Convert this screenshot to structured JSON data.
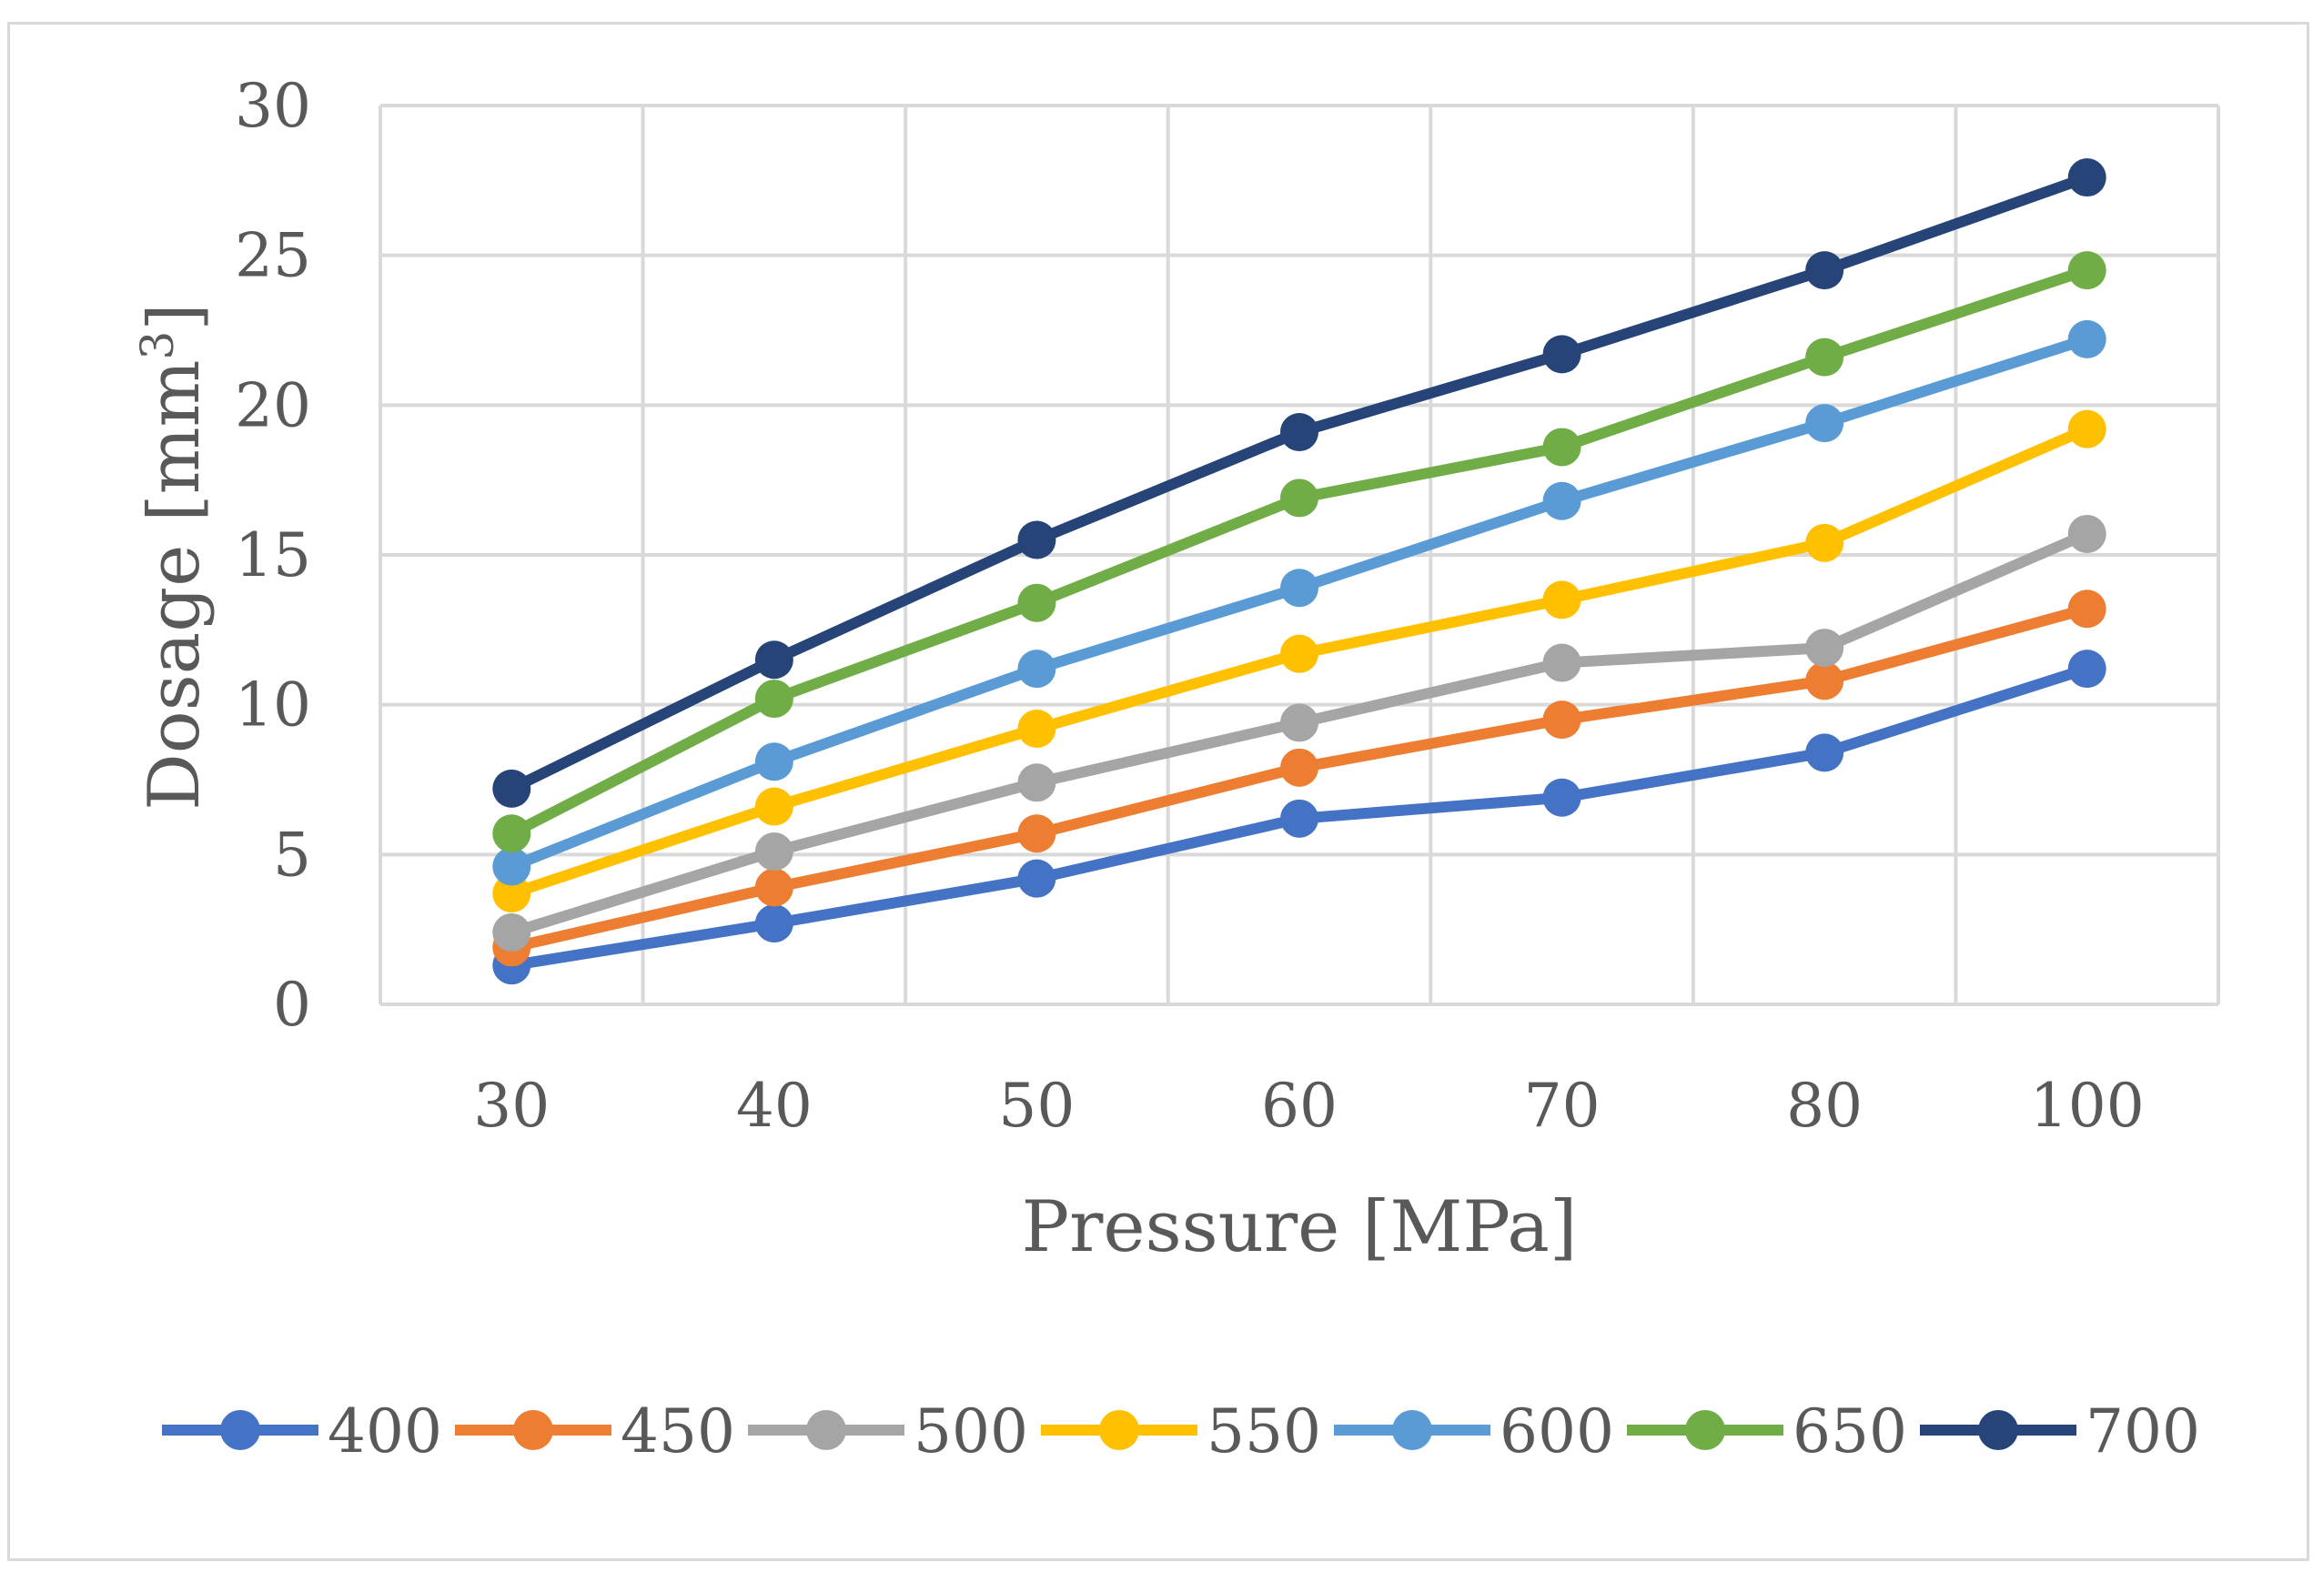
{
  "chart_data": {
    "type": "line",
    "title": "",
    "xlabel": "Pressure [MPa]",
    "ylabel_main": "Dosage [mm",
    "ylabel_sup": "3",
    "ylabel_end": "]",
    "categories": [
      "30",
      "40",
      "50",
      "60",
      "70",
      "80",
      "100"
    ],
    "ylim": [
      0,
      30
    ],
    "yticks": [
      "0",
      "5",
      "10",
      "15",
      "20",
      "25",
      "30"
    ],
    "grid": true,
    "legend_position": "bottom",
    "series": [
      {
        "name": "400",
        "color": "#4472c4",
        "values": [
          1.3,
          2.7,
          4.2,
          6.2,
          6.9,
          8.4,
          11.2
        ]
      },
      {
        "name": "450",
        "color": "#ed7d31",
        "values": [
          1.9,
          3.9,
          5.7,
          7.9,
          9.5,
          10.8,
          13.2
        ]
      },
      {
        "name": "500",
        "color": "#a5a5a5",
        "values": [
          2.4,
          5.1,
          7.4,
          9.4,
          11.4,
          11.9,
          15.7
        ]
      },
      {
        "name": "550",
        "color": "#ffc000",
        "values": [
          3.7,
          6.6,
          9.2,
          11.7,
          13.5,
          15.4,
          19.2
        ]
      },
      {
        "name": "600",
        "color": "#5b9bd5",
        "values": [
          4.6,
          8.1,
          11.2,
          13.9,
          16.8,
          19.4,
          22.2
        ]
      },
      {
        "name": "650",
        "color": "#70ad47",
        "values": [
          5.7,
          10.2,
          13.4,
          16.9,
          18.6,
          21.6,
          24.5
        ]
      },
      {
        "name": "700",
        "color": "#264478",
        "values": [
          7.2,
          11.5,
          15.5,
          19.1,
          21.7,
          24.5,
          27.6
        ]
      }
    ]
  }
}
